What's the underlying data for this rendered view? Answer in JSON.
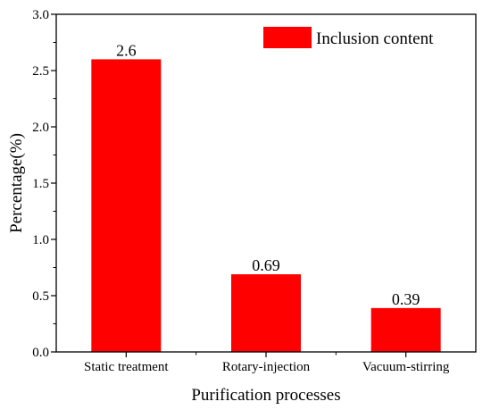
{
  "chart_data": {
    "type": "bar",
    "categories": [
      "Static treatment",
      "Rotary-injection",
      "Vacuum-stirring"
    ],
    "values": [
      2.6,
      0.69,
      0.39
    ],
    "data_labels": [
      "2.6",
      "0.69",
      "0.39"
    ],
    "series_name": "Inclusion content",
    "xlabel": "Purification processes",
    "ylabel": "Percentage(%)",
    "ylim": [
      0,
      3.0
    ],
    "y_ticks": [
      "0.0",
      "0.5",
      "1.0",
      "1.5",
      "2.0",
      "2.5",
      "3.0"
    ],
    "grid": false,
    "legend_position": "top-right",
    "bar_color": "#ff0000"
  }
}
